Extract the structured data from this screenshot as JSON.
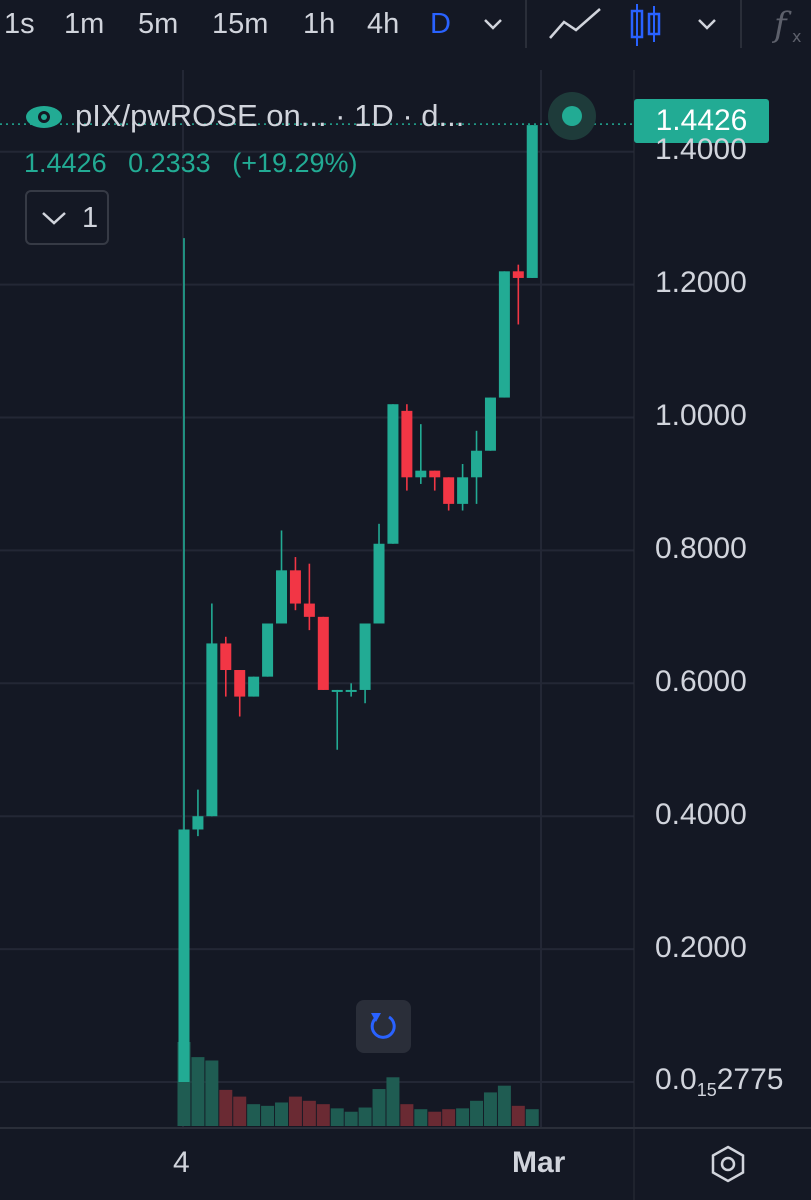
{
  "toolbar": {
    "timeframes": [
      "1s",
      "1m",
      "5m",
      "15m",
      "1h",
      "4h",
      "D"
    ],
    "active_timeframe": "D",
    "icons": [
      "chevron-down-icon",
      "line-chart-icon",
      "candlestick-icon",
      "chevron-down-icon",
      "fx-icon"
    ]
  },
  "legend": {
    "title": "pIX/pwROSE on... · 1D · d...",
    "last": "1.4426",
    "change": "0.2333",
    "change_pct": "(+19.29%)",
    "indicator_count": "1"
  },
  "price_tag": "1.4426",
  "colors": {
    "up": "#22ab94",
    "down": "#f23645",
    "background": "#141824",
    "accent": "#2962ff"
  },
  "chart_data": {
    "type": "candlestick",
    "y_ticks": [
      "1.4000",
      "1.2000",
      "1.0000",
      "0.8000",
      "0.6000",
      "0.4000",
      "0.2000"
    ],
    "y_bottom_label": {
      "pre": "0.0",
      "sub": "15",
      "post": "2775"
    },
    "x_ticks": [
      "4",
      "Mar"
    ],
    "ylim": [
      0,
      1.45
    ],
    "candles": [
      {
        "o": 0.0,
        "h": 1.27,
        "l": 0.0,
        "c": 0.38,
        "v": 100
      },
      {
        "o": 0.38,
        "h": 0.44,
        "l": 0.37,
        "c": 0.4,
        "v": 82
      },
      {
        "o": 0.4,
        "h": 0.72,
        "l": 0.4,
        "c": 0.66,
        "v": 78
      },
      {
        "o": 0.66,
        "h": 0.67,
        "l": 0.58,
        "c": 0.62,
        "v": 43
      },
      {
        "o": 0.62,
        "h": 0.61,
        "l": 0.55,
        "c": 0.58,
        "v": 35
      },
      {
        "o": 0.58,
        "h": 0.61,
        "l": 0.58,
        "c": 0.61,
        "v": 26
      },
      {
        "o": 0.61,
        "h": 0.69,
        "l": 0.61,
        "c": 0.69,
        "v": 24
      },
      {
        "o": 0.69,
        "h": 0.83,
        "l": 0.69,
        "c": 0.77,
        "v": 28
      },
      {
        "o": 0.77,
        "h": 0.79,
        "l": 0.71,
        "c": 0.72,
        "v": 35
      },
      {
        "o": 0.72,
        "h": 0.78,
        "l": 0.68,
        "c": 0.7,
        "v": 30
      },
      {
        "o": 0.7,
        "h": 0.7,
        "l": 0.59,
        "c": 0.59,
        "v": 26
      },
      {
        "o": 0.59,
        "h": 0.59,
        "l": 0.5,
        "c": 0.59,
        "v": 21
      },
      {
        "o": 0.59,
        "h": 0.6,
        "l": 0.58,
        "c": 0.59,
        "v": 17
      },
      {
        "o": 0.59,
        "h": 0.69,
        "l": 0.57,
        "c": 0.69,
        "v": 22
      },
      {
        "o": 0.69,
        "h": 0.84,
        "l": 0.69,
        "c": 0.81,
        "v": 44
      },
      {
        "o": 0.81,
        "h": 1.02,
        "l": 0.81,
        "c": 1.02,
        "v": 58
      },
      {
        "o": 1.01,
        "h": 1.02,
        "l": 0.89,
        "c": 0.91,
        "v": 26
      },
      {
        "o": 0.91,
        "h": 0.99,
        "l": 0.9,
        "c": 0.92,
        "v": 20
      },
      {
        "o": 0.92,
        "h": 0.92,
        "l": 0.89,
        "c": 0.91,
        "v": 17
      },
      {
        "o": 0.91,
        "h": 0.91,
        "l": 0.86,
        "c": 0.87,
        "v": 20
      },
      {
        "o": 0.87,
        "h": 0.93,
        "l": 0.86,
        "c": 0.91,
        "v": 21
      },
      {
        "o": 0.91,
        "h": 0.98,
        "l": 0.87,
        "c": 0.95,
        "v": 30
      },
      {
        "o": 0.95,
        "h": 1.03,
        "l": 0.95,
        "c": 1.03,
        "v": 40
      },
      {
        "o": 1.03,
        "h": 1.22,
        "l": 1.03,
        "c": 1.22,
        "v": 48
      },
      {
        "o": 1.22,
        "h": 1.23,
        "l": 1.14,
        "c": 1.21,
        "v": 24
      },
      {
        "o": 1.21,
        "h": 1.44,
        "l": 1.21,
        "c": 1.44,
        "v": 20
      }
    ]
  }
}
